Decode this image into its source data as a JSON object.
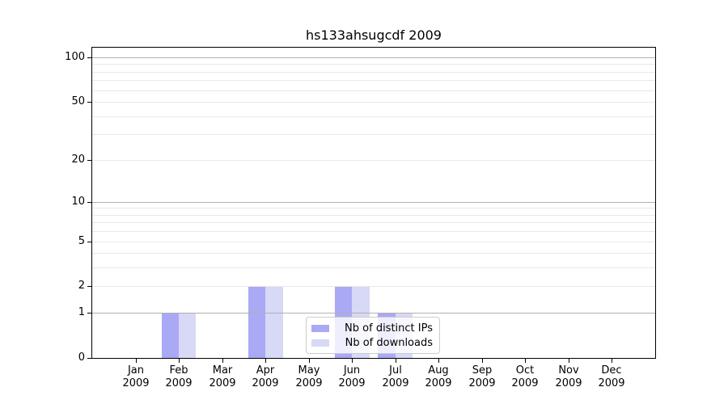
{
  "chart_data": {
    "type": "bar",
    "title": "hs133ahsugcdf 2009",
    "categories": [
      "Jan",
      "Feb",
      "Mar",
      "Apr",
      "May",
      "Jun",
      "Jul",
      "Aug",
      "Sep",
      "Oct",
      "Nov",
      "Dec"
    ],
    "year_label": "2009",
    "series": [
      {
        "name": "Nb of distinct IPs",
        "color": "#a9a9f5",
        "values": [
          0,
          1,
          0,
          2,
          0,
          2,
          1,
          0,
          0,
          0,
          0,
          0
        ]
      },
      {
        "name": "Nb of downloads",
        "color": "#d8d8f7",
        "values": [
          0,
          1,
          0,
          2,
          0,
          2,
          1,
          0,
          0,
          0,
          0,
          0
        ]
      }
    ],
    "y_scale": "log1p",
    "y_max": 116,
    "y_ticks": [
      0,
      1,
      2,
      5,
      10,
      20,
      50,
      100
    ],
    "y_major_gridlines": [
      1,
      10,
      100
    ],
    "y_minor_gridlines": [
      2,
      3,
      4,
      5,
      6,
      7,
      8,
      9,
      20,
      30,
      40,
      50,
      60,
      70,
      80,
      90
    ],
    "grid": true,
    "legend_position": "lower-center",
    "colors": {
      "major_grid": "#b0b0b0",
      "minor_grid": "#e8e8e8",
      "axis": "#000000",
      "legend_border": "#cccccc",
      "background": "#ffffff"
    }
  }
}
